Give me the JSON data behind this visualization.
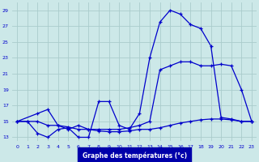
{
  "bg_color": "#cce8e8",
  "grid_color": "#aacccc",
  "line_color": "#0000cc",
  "xlabel": "Graphe des températures (°c)",
  "xlabel_bg": "#0000aa",
  "xlabel_fg": "#ffffff",
  "xlim": [
    -0.5,
    23.5
  ],
  "ylim": [
    12.5,
    30.0
  ],
  "x_ticks": [
    0,
    1,
    2,
    3,
    4,
    5,
    6,
    7,
    8,
    9,
    10,
    11,
    12,
    13,
    14,
    15,
    16,
    17,
    18,
    19,
    20,
    21,
    22,
    23
  ],
  "y_ticks": [
    13,
    15,
    17,
    19,
    21,
    23,
    25,
    27,
    29
  ],
  "line1_x": [
    0,
    1,
    2,
    3,
    4,
    5,
    6,
    7,
    8,
    9,
    10,
    11,
    12,
    13,
    14,
    15,
    16,
    17,
    18,
    19,
    20,
    21,
    22,
    23
  ],
  "line1_y": [
    15,
    15,
    13.5,
    13,
    14,
    14.2,
    13,
    13,
    17.5,
    17.5,
    14.5,
    14,
    16,
    23,
    27.5,
    29,
    28.5,
    27.2,
    26.7,
    24.5,
    15.5,
    15.3,
    15,
    15
  ],
  "line2_x": [
    0,
    2,
    3,
    4,
    5,
    6,
    7,
    8,
    9,
    10,
    11,
    12,
    13,
    14,
    15,
    16,
    17,
    18,
    19,
    20,
    21,
    22,
    23
  ],
  "line2_y": [
    15,
    16,
    16.5,
    14.5,
    14,
    14.5,
    14,
    14,
    14,
    14,
    14.2,
    14.5,
    15,
    21.5,
    22,
    22.5,
    22.5,
    22,
    22,
    22.2,
    22,
    19,
    15
  ],
  "line3_x": [
    0,
    1,
    2,
    3,
    4,
    5,
    6,
    7,
    8,
    9,
    10,
    11,
    12,
    13,
    14,
    15,
    16,
    17,
    18,
    19,
    20,
    21,
    22,
    23
  ],
  "line3_y": [
    15,
    15,
    15,
    14.5,
    14.5,
    14.3,
    14,
    14,
    13.8,
    13.7,
    13.7,
    13.8,
    14,
    14,
    14.2,
    14.5,
    14.8,
    15,
    15.2,
    15.3,
    15.3,
    15.2,
    15,
    15
  ]
}
